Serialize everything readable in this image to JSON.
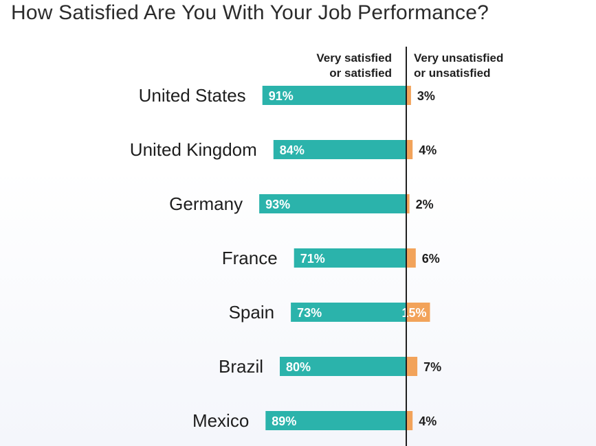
{
  "chart_data": {
    "type": "bar",
    "title": "How Satisfied Are You With Your Job Performance?",
    "categories": [
      "United States",
      "United Kingdom",
      "Germany",
      "France",
      "Spain",
      "Brazil",
      "Mexico"
    ],
    "series": [
      {
        "name": "Very satisfied or satisfied",
        "name_lines": [
          "Very satisfied",
          "or satisfied"
        ],
        "values": [
          91,
          84,
          93,
          71,
          73,
          80,
          89
        ],
        "labels": [
          "91%",
          "84%",
          "93%",
          "71%",
          "73%",
          "80%",
          "89%"
        ],
        "color": "#2bb3ab"
      },
      {
        "name": "Very unsatisfied or unsatisfied",
        "name_lines": [
          "Very unsatisfied",
          "or unsatisfied"
        ],
        "values": [
          3,
          4,
          2,
          6,
          15,
          7,
          4
        ],
        "labels": [
          "3%",
          "4%",
          "2%",
          "6%",
          "15%",
          "7%",
          "4%"
        ],
        "color": "#f2a35a"
      }
    ],
    "orientation": "horizontal-diverging",
    "label_color_text": "#ffffff",
    "label_color_dark": "#1e1e1e",
    "axis_color": "#1e1e1e"
  }
}
